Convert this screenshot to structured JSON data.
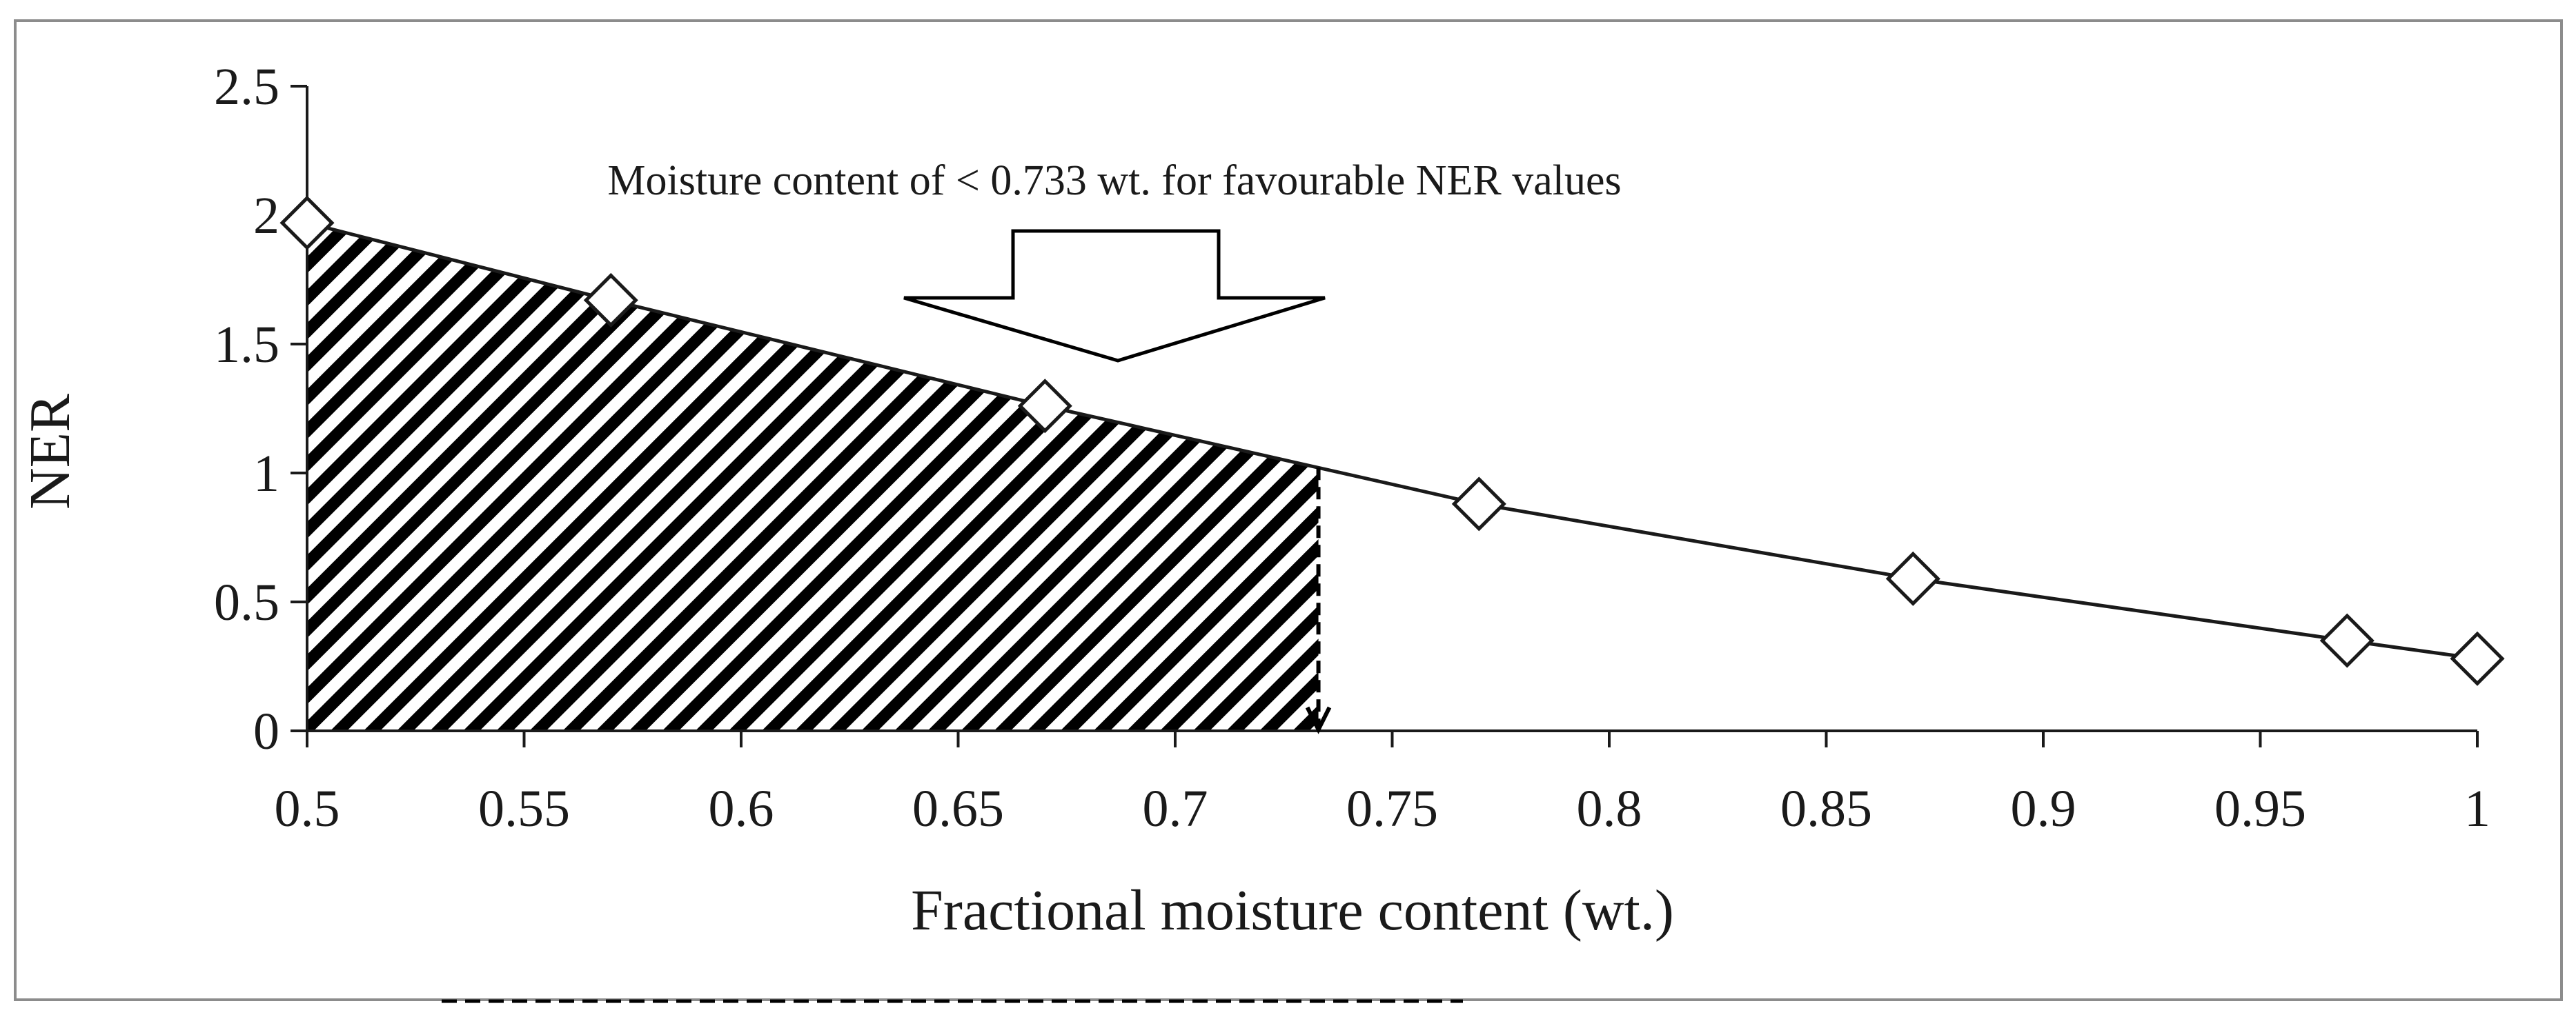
{
  "chart_data": {
    "type": "line",
    "xlabel": "Fractional moisture content (wt.)",
    "ylabel": "NER",
    "xlim": [
      0.5,
      1.0
    ],
    "ylim": [
      0,
      2.5
    ],
    "x_ticks": [
      "0.5",
      "0.55",
      "0.6",
      "0.65",
      "0.7",
      "0.75",
      "0.8",
      "0.85",
      "0.9",
      "0.95",
      "1"
    ],
    "y_ticks": [
      "0",
      "0.5",
      "1",
      "1.5",
      "2",
      "2.5"
    ],
    "grid": false,
    "legend": "none",
    "marker": "open-diamond",
    "series": [
      {
        "x": [
          0.5,
          0.57,
          0.67,
          0.77,
          0.87,
          0.97,
          1.0
        ],
        "y": [
          1.97,
          1.67,
          1.26,
          0.88,
          0.59,
          0.35,
          0.28
        ]
      }
    ],
    "shaded_region": {
      "pattern": "diagonal-hatch",
      "x_from": 0.5,
      "x_to": 0.733
    },
    "annotation": {
      "text": "Moisture content of < 0.733 wt. for favourable NER values",
      "marker": "down-arrow",
      "cutoff_x": 0.733
    },
    "colors": {
      "line": "#1a1a1a",
      "hatch": "#000000",
      "frame": "#8c8c8c"
    }
  }
}
